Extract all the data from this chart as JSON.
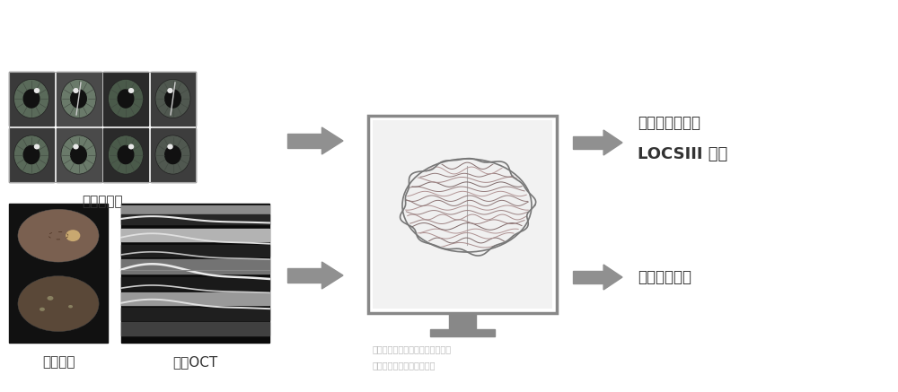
{
  "bg_color": "#ffffff",
  "arrow_color": "#888888",
  "text_color": "#333333",
  "light_text_color": "#bbbbbb",
  "monitor_border": "#888888",
  "label_top": "眼前节照片",
  "label_bottom_left": "眼底照片",
  "label_bottom_right": "眼底OCT",
  "output_top1": "白内障程度分级",
  "output_top2": "LOCSIII 分级",
  "output_bottom": "眼底情况评估",
  "caption_line1": "晶状体混浊程度分级深度学习模型",
  "caption_line2": "眼底情况评估深度学习模型",
  "figsize": [
    10.0,
    4.37
  ],
  "dpi": 100
}
